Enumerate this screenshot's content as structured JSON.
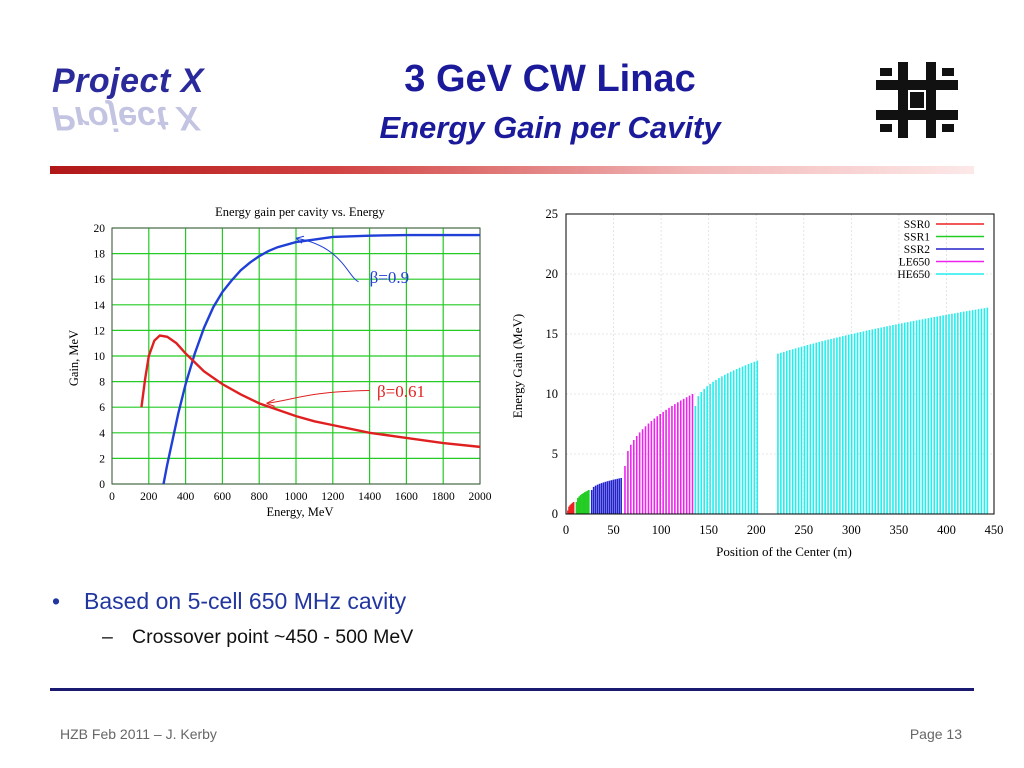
{
  "header": {
    "logo_text": "Project X",
    "title": "3 GeV CW Linac",
    "subtitle": "Energy Gain per Cavity",
    "accent_color": "#1a1a9a",
    "rule_color": "#b01818"
  },
  "chart_data": [
    {
      "type": "line",
      "title": "Energy gain per cavity vs. Energy",
      "xlabel": "Energy, MeV",
      "ylabel": "Gain, MeV",
      "xlim": [
        0,
        2000
      ],
      "ylim": [
        0,
        20
      ],
      "xticks": [
        0,
        200,
        400,
        600,
        800,
        1000,
        1200,
        1400,
        1600,
        1800,
        2000
      ],
      "yticks": [
        0,
        2,
        4,
        6,
        8,
        10,
        12,
        14,
        16,
        18,
        20
      ],
      "grid": true,
      "grid_color": "#22cc22",
      "series": [
        {
          "name": "β=0.9",
          "color": "#1f3fd6",
          "x": [
            280,
            300,
            330,
            360,
            400,
            450,
            500,
            550,
            600,
            650,
            700,
            750,
            800,
            850,
            900,
            1000,
            1100,
            1200,
            1300,
            1400,
            1600,
            1800,
            2000
          ],
          "y": [
            0,
            1.5,
            3.5,
            5.5,
            7.8,
            10.2,
            12.2,
            13.8,
            15.0,
            15.9,
            16.7,
            17.3,
            17.8,
            18.2,
            18.5,
            18.9,
            19.1,
            19.3,
            19.35,
            19.4,
            19.45,
            19.45,
            19.45
          ]
        },
        {
          "name": "β=0.61",
          "color": "#e02020",
          "x": [
            160,
            180,
            200,
            230,
            260,
            300,
            350,
            400,
            450,
            500,
            600,
            700,
            800,
            900,
            1000,
            1100,
            1200,
            1400,
            1600,
            1800,
            2000
          ],
          "y": [
            6.0,
            8.2,
            10.0,
            11.2,
            11.6,
            11.5,
            11.0,
            10.2,
            9.5,
            8.8,
            7.8,
            7.0,
            6.3,
            5.8,
            5.3,
            4.9,
            4.6,
            4.0,
            3.6,
            3.2,
            2.9
          ]
        }
      ],
      "annotations": [
        {
          "text": "β=0.9",
          "color": "#1f3fd6",
          "arrow_to": [
            1000,
            19.2
          ]
        },
        {
          "text": "β=0.61",
          "color": "#e02020",
          "arrow_to": [
            840,
            6.3
          ]
        }
      ]
    },
    {
      "type": "bar",
      "xlabel": "Position of the Center (m)",
      "ylabel": "Energy Gain (MeV)",
      "xlim": [
        0,
        450
      ],
      "ylim": [
        0,
        25
      ],
      "xticks": [
        0,
        50,
        100,
        150,
        200,
        250,
        300,
        350,
        400,
        450
      ],
      "yticks": [
        0,
        5,
        10,
        15,
        20,
        25
      ],
      "grid": true,
      "legend_position": "top-right",
      "series": [
        {
          "name": "SSR0",
          "color": "#ee2020",
          "x_start": 2,
          "x_end": 8,
          "n": 6,
          "y_start": 0.3,
          "y_end": 1.0
        },
        {
          "name": "SSR1",
          "color": "#22cc22",
          "x_start": 11,
          "x_end": 24,
          "n": 10,
          "y_start": 1.0,
          "y_end": 2.0
        },
        {
          "name": "SSR2",
          "color": "#2222cc",
          "x_start": 27,
          "x_end": 58,
          "n": 16,
          "y_start": 2.0,
          "y_end": 3.0
        },
        {
          "name": "LE650",
          "color": "#ee22ee",
          "x_start": 62,
          "x_end": 133,
          "n": 24,
          "y_start": 4.0,
          "y_end": 10.0
        },
        {
          "name": "HE650",
          "color": "#22eeee",
          "x_start": 136,
          "x_end": 443,
          "n": 100,
          "y_start": 9.0,
          "y_end": 17.2
        }
      ]
    }
  ],
  "bullets": [
    {
      "text": "Based on 5-cell 650 MHz cavity",
      "sub": [
        "Crossover point ~450 - 500 MeV"
      ]
    }
  ],
  "footer": {
    "left": "HZB Feb 2011 – J. Kerby",
    "right": "Page 13"
  }
}
